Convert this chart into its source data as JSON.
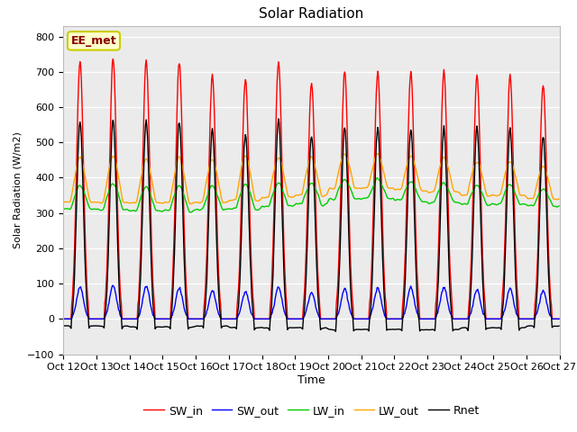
{
  "title": "Solar Radiation",
  "ylabel": "Solar Radiation (W/m2)",
  "xlabel": "Time",
  "ylim": [
    -100,
    830
  ],
  "SW_in_color": "#ff0000",
  "SW_out_color": "#0000ff",
  "LW_in_color": "#00cc00",
  "LW_out_color": "#ffa500",
  "Rnet_color": "#000000",
  "annotation_text": "EE_met",
  "annotation_bg": "#ffffcc",
  "annotation_border": "#cccc00",
  "n_days": 15,
  "start_day": 12,
  "dt": 0.5,
  "sw_in_peaks": [
    730,
    735,
    730,
    728,
    690,
    680,
    728,
    670,
    700,
    700,
    700,
    700,
    690,
    690,
    665
  ],
  "sw_out_peaks": [
    90,
    95,
    92,
    88,
    80,
    78,
    90,
    75,
    85,
    88,
    88,
    88,
    82,
    85,
    80
  ],
  "lw_in_base": [
    310,
    310,
    305,
    305,
    310,
    310,
    320,
    325,
    340,
    340,
    335,
    330,
    325,
    325,
    320
  ],
  "lw_in_day_bump": [
    70,
    75,
    70,
    75,
    68,
    72,
    65,
    60,
    55,
    55,
    55,
    55,
    55,
    55,
    50
  ],
  "lw_out_base": [
    330,
    330,
    328,
    328,
    330,
    335,
    345,
    350,
    370,
    370,
    365,
    360,
    350,
    350,
    340
  ],
  "lw_out_day_bump": [
    130,
    135,
    128,
    132,
    125,
    130,
    115,
    110,
    100,
    100,
    100,
    100,
    100,
    100,
    95
  ],
  "night_lw_net": -50
}
